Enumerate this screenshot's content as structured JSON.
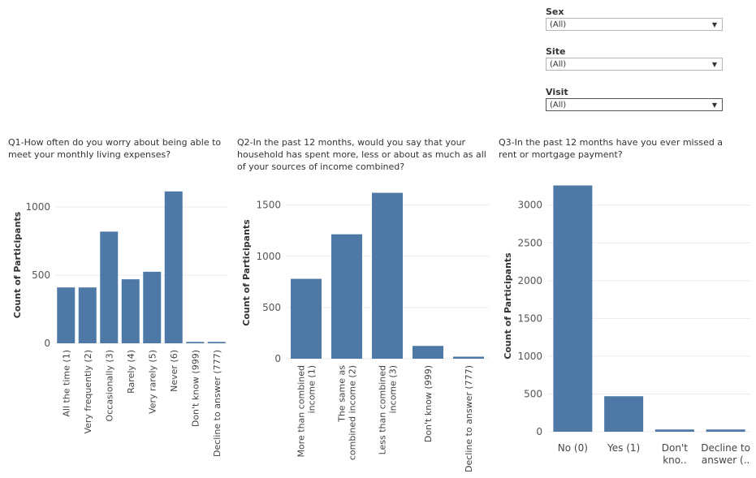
{
  "filters": [
    {
      "label": "Sex",
      "value": "(All)"
    },
    {
      "label": "Site",
      "value": "(All)"
    },
    {
      "label": "Visit",
      "value": "(All)"
    }
  ],
  "colors": {
    "bar": "#4e79a7",
    "grid": "#ececec",
    "text": "#555555"
  },
  "chart_data": [
    {
      "type": "bar",
      "title": "Q1-How often do you worry about being able to meet your monthly living expenses?",
      "ylabel": "Count of Participants",
      "categories": [
        "All the time (1)",
        "Very frequently (2)",
        "Occasionally (3)",
        "Rarely (4)",
        "Very rarely (5)",
        "Never (6)",
        "Don't know (999)",
        "Decline to answer (777)"
      ],
      "values": [
        410,
        410,
        820,
        470,
        525,
        1115,
        10,
        10
      ],
      "yticks": [
        0,
        500,
        1000
      ],
      "ylim": [
        0,
        1150
      ],
      "grid": true
    },
    {
      "type": "bar",
      "title": "Q2-In the past 12 months, would you say that your household has spent more, less or about as much as all of your sources of income combined?",
      "ylabel": "Count of Participants",
      "categories": [
        "More than combined income (1)",
        "The same as combined income (2)",
        "Less than combined income (3)",
        "Don't know (999)",
        "Decline to answer (777)"
      ],
      "values": [
        780,
        1215,
        1620,
        125,
        20
      ],
      "yticks": [
        0,
        500,
        1000,
        1500
      ],
      "ylim": [
        0,
        1680
      ],
      "grid": true
    },
    {
      "type": "bar",
      "title": "Q3-In the past 12 months have you ever missed a rent or mortgage payment?",
      "ylabel": "Count of Participants",
      "categories": [
        "No (0)",
        "Yes (1)",
        "Don't kno..",
        "Decline to answer (.."
      ],
      "values": [
        3260,
        470,
        30,
        30
      ],
      "yticks": [
        0,
        500,
        1000,
        1500,
        2000,
        2500,
        3000
      ],
      "ylim": [
        0,
        3330
      ],
      "grid": true
    }
  ]
}
